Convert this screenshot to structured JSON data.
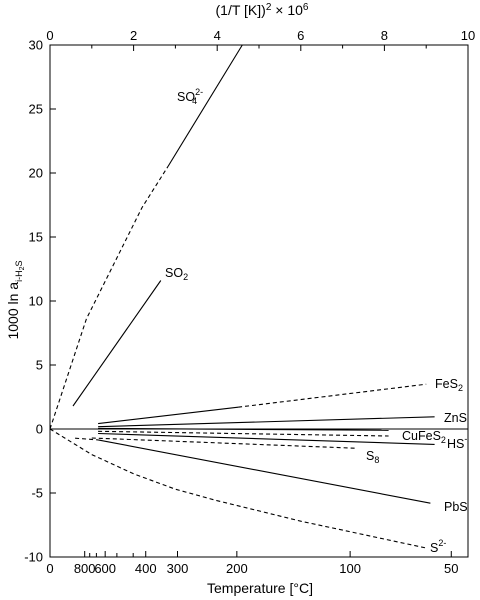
{
  "chart_data": {
    "type": "line",
    "title": "",
    "ylabel": "1000 ln a i-H2S",
    "ylabel_parts": {
      "main": "1000 ln a",
      "sub": "i-H",
      "sub2": "2",
      "sub3": "S"
    },
    "ylim": [
      -10,
      30
    ],
    "yticks": [
      -10,
      -5,
      0,
      5,
      10,
      15,
      20,
      25,
      30
    ],
    "xlim": [
      0,
      10
    ],
    "x_unit": "(1/T [K])^2 x 10^6",
    "top_axis": {
      "title_parts": {
        "a": "(1/T [K])",
        "a_sup": "2",
        "b": " × 10",
        "b_sup": "6"
      },
      "ticks": [
        0,
        2,
        4,
        6,
        8,
        10
      ],
      "minor_ticks": [
        1,
        3,
        5,
        7,
        9
      ]
    },
    "bottom_axis": {
      "title": "Temperature [°C]",
      "ticks": [
        {
          "label": "0",
          "x": 0.0
        },
        {
          "label": "800",
          "x": 0.83
        },
        {
          "label": "600",
          "x": 1.32
        },
        {
          "label": "400",
          "x": 2.29
        },
        {
          "label": "300",
          "x": 3.05
        },
        {
          "label": "200",
          "x": 4.47
        },
        {
          "label": "100",
          "x": 7.18
        },
        {
          "label": "50",
          "x": 9.6
        }
      ],
      "minor_ticks": [
        0.95,
        1.11,
        1.6,
        1.99
      ]
    },
    "reference_line": {
      "y": 0,
      "x": [
        0,
        10
      ]
    },
    "series": [
      {
        "name": "SO₄²⁻",
        "label": {
          "main": "SO",
          "sub": "4",
          "sup": "2-"
        },
        "solid": [
          {
            "x": 2.82,
            "y": 20.5
          },
          {
            "x": 4.6,
            "y": 30
          }
        ],
        "dashed": [
          {
            "x": 0,
            "y": 0
          },
          {
            "x": 0.87,
            "y": 8.6
          },
          {
            "x": 2.2,
            "y": 17.3
          },
          {
            "x": 2.82,
            "y": 20.5
          }
        ]
      },
      {
        "name": "SO₂",
        "label": {
          "main": "SO",
          "sub": "2",
          "sup": ""
        },
        "solid": [
          {
            "x": 0.55,
            "y": 1.8
          },
          {
            "x": 2.65,
            "y": 11.6
          }
        ],
        "dashed": []
      },
      {
        "name": "FeS₂",
        "label": {
          "main": "FeS",
          "sub": "2",
          "sup": ""
        },
        "solid": [
          {
            "x": 1.15,
            "y": 0.42
          },
          {
            "x": 4.5,
            "y": 1.7
          }
        ],
        "dashed": [
          {
            "x": 4.5,
            "y": 1.7
          },
          {
            "x": 9.0,
            "y": 3.5
          }
        ]
      },
      {
        "name": "ZnS",
        "label": {
          "main": "ZnS",
          "sub": "",
          "sup": ""
        },
        "solid": [
          {
            "x": 1.15,
            "y": 0.18
          },
          {
            "x": 9.2,
            "y": 0.95
          }
        ],
        "dashed": []
      },
      {
        "name": "CuFeS₂",
        "label": {
          "main": "CuFeS",
          "sub": "2",
          "sup": ""
        },
        "solid": [
          {
            "x": 1.15,
            "y": 0.05
          },
          {
            "x": 8.1,
            "y": -0.1
          }
        ],
        "dashed": [
          {
            "x": 1.15,
            "y": -0.18
          },
          {
            "x": 8.1,
            "y": -0.55
          }
        ]
      },
      {
        "name": "HS⁻",
        "label": {
          "main": "HS",
          "sub": "",
          "sup": "-"
        },
        "solid": [
          {
            "x": 1.15,
            "y": -0.35
          },
          {
            "x": 9.2,
            "y": -1.2
          }
        ],
        "dashed": []
      },
      {
        "name": "S₈",
        "label": {
          "main": "S",
          "sub": "8",
          "sup": ""
        },
        "solid": [],
        "dashed": [
          {
            "x": 1.0,
            "y": -0.7
          },
          {
            "x": 7.3,
            "y": -1.5
          }
        ]
      },
      {
        "name": "PbS",
        "label": {
          "main": "PbS",
          "sub": "",
          "sup": ""
        },
        "solid": [
          {
            "x": 1.15,
            "y": -0.85
          },
          {
            "x": 9.1,
            "y": -5.8
          }
        ],
        "dashed": [
          {
            "x": 0.6,
            "y": -0.72
          },
          {
            "x": 1.15,
            "y": -0.85
          }
        ]
      },
      {
        "name": "S²⁻",
        "label": {
          "main": "S",
          "sub": "",
          "sup": "2-"
        },
        "solid": [],
        "dashed": [
          {
            "x": 0,
            "y": 0
          },
          {
            "x": 1.0,
            "y": -2.0
          },
          {
            "x": 2.0,
            "y": -3.5
          },
          {
            "x": 3.0,
            "y": -4.7
          },
          {
            "x": 4.0,
            "y": -5.6
          },
          {
            "x": 5.0,
            "y": -6.4
          },
          {
            "x": 6.0,
            "y": -7.2
          },
          {
            "x": 7.0,
            "y": -7.9
          },
          {
            "x": 8.0,
            "y": -8.6
          },
          {
            "x": 9.0,
            "y": -9.3
          }
        ]
      }
    ]
  }
}
